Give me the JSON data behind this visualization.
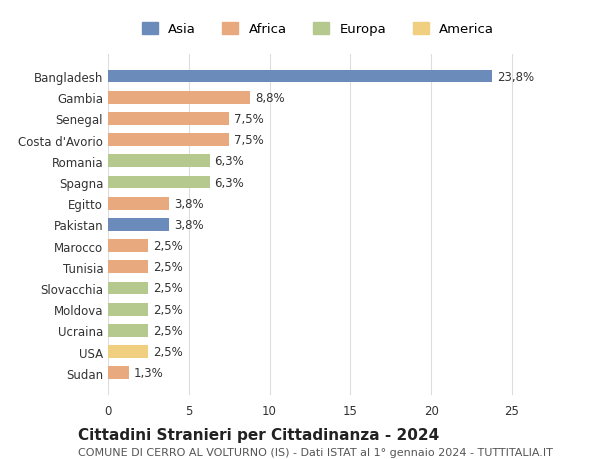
{
  "categories": [
    "Bangladesh",
    "Gambia",
    "Senegal",
    "Costa d'Avorio",
    "Romania",
    "Spagna",
    "Egitto",
    "Pakistan",
    "Marocco",
    "Tunisia",
    "Slovacchia",
    "Moldova",
    "Ucraina",
    "USA",
    "Sudan"
  ],
  "values": [
    23.8,
    8.8,
    7.5,
    7.5,
    6.3,
    6.3,
    3.8,
    3.8,
    2.5,
    2.5,
    2.5,
    2.5,
    2.5,
    2.5,
    1.3
  ],
  "labels": [
    "23,8%",
    "8,8%",
    "7,5%",
    "7,5%",
    "6,3%",
    "6,3%",
    "3,8%",
    "3,8%",
    "2,5%",
    "2,5%",
    "2,5%",
    "2,5%",
    "2,5%",
    "2,5%",
    "1,3%"
  ],
  "regions": [
    "Asia",
    "Africa",
    "Africa",
    "Africa",
    "Europa",
    "Europa",
    "Africa",
    "Asia",
    "Africa",
    "Africa",
    "Europa",
    "Europa",
    "Europa",
    "America",
    "Africa"
  ],
  "region_colors": {
    "Asia": "#6b8cba",
    "Africa": "#e8a97e",
    "Europa": "#b5c98e",
    "America": "#f0d080"
  },
  "legend_order": [
    "Asia",
    "Africa",
    "Europa",
    "America"
  ],
  "title": "Cittadini Stranieri per Cittadinanza - 2024",
  "subtitle": "COMUNE DI CERRO AL VOLTURNO (IS) - Dati ISTAT al 1° gennaio 2024 - TUTTITALIA.IT",
  "xlim": [
    0,
    26
  ],
  "xticks": [
    0,
    5,
    10,
    15,
    20,
    25
  ],
  "background_color": "#ffffff",
  "grid_color": "#dddddd",
  "bar_height": 0.6,
  "label_fontsize": 8.5,
  "tick_fontsize": 8.5,
  "title_fontsize": 11,
  "subtitle_fontsize": 8
}
